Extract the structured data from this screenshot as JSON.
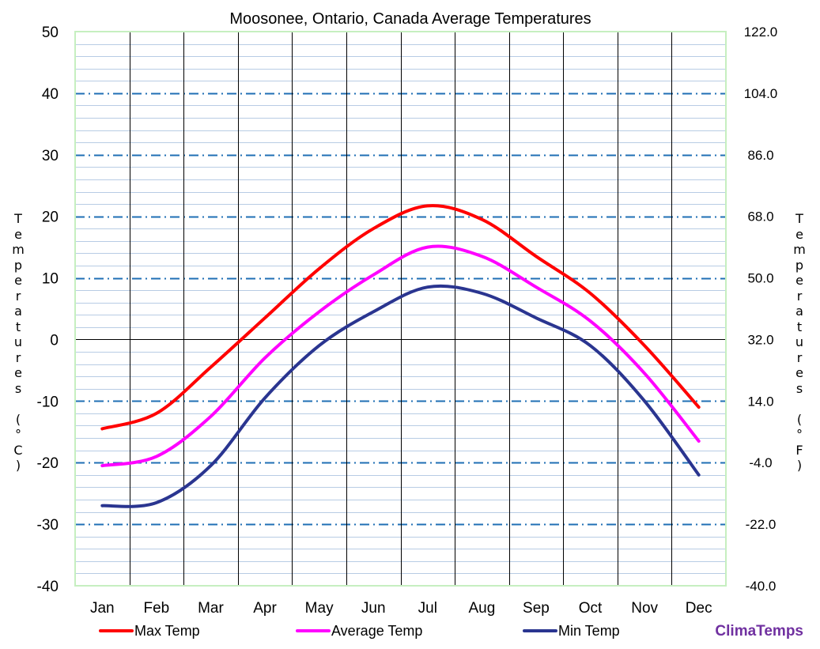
{
  "chart_data": {
    "type": "line",
    "title": "Moosonee, Ontario, Canada Average Temperatures",
    "categories": [
      "Jan",
      "Feb",
      "Mar",
      "Apr",
      "May",
      "Jun",
      "Jul",
      "Aug",
      "Sep",
      "Oct",
      "Nov",
      "Dec"
    ],
    "series": [
      {
        "name": "Max Temp",
        "color": "#ff0000",
        "values": [
          -14.5,
          -12.0,
          -4.5,
          3.5,
          11.5,
          18.0,
          21.7,
          19.5,
          13.5,
          7.5,
          -1.0,
          -11.0
        ]
      },
      {
        "name": "Average Temp",
        "color": "#ff00ff",
        "values": [
          -20.5,
          -19.0,
          -12.5,
          -3.0,
          4.5,
          10.5,
          15.0,
          13.5,
          8.5,
          3.0,
          -5.5,
          -16.5
        ]
      },
      {
        "name": "Min Temp",
        "color": "#2a3590",
        "values": [
          -27.0,
          -26.5,
          -20.5,
          -9.5,
          -1.0,
          4.5,
          8.5,
          7.5,
          3.5,
          -1.0,
          -10.0,
          -22.0
        ]
      }
    ],
    "ylim": [
      -40,
      50
    ],
    "y_ticks": [
      "50",
      "40",
      "30",
      "20",
      "10",
      "0",
      "-10",
      "-20",
      "-30",
      "-40"
    ],
    "y2lim": [
      -40,
      122
    ],
    "y2_ticks": [
      "122.0",
      "104.0",
      "86.0",
      "68.0",
      "50.0",
      "32.0",
      "14.0",
      "-4.0",
      "-22.0",
      "-40.0"
    ],
    "ylabel": "Temperatures (°C)",
    "y2label": "Temperatures (°F)",
    "ylabel_chars": [
      "T",
      "e",
      "m",
      "p",
      "e",
      "r",
      "a",
      "t",
      "u",
      "r",
      "e",
      "s",
      "",
      "(",
      "°",
      "C",
      ")"
    ],
    "y2label_chars": [
      "T",
      "e",
      "m",
      "p",
      "e",
      "r",
      "a",
      "t",
      "u",
      "r",
      "e",
      "s",
      "",
      "(",
      "°",
      "F",
      ")"
    ],
    "grid": true,
    "legend_position": "bottom"
  },
  "brand": {
    "text": "ClimaTemps",
    "color": "#7030a0"
  }
}
